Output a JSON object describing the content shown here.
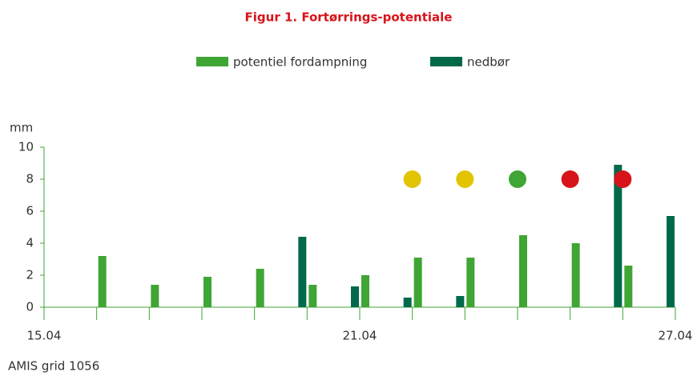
{
  "chart_data": {
    "type": "bar",
    "title": "Figur 1. Fortørrings-potentiale",
    "y_label": "mm",
    "footer": "AMIS grid 1056",
    "categories": [
      "15.04",
      null,
      null,
      null,
      null,
      null,
      "21.04",
      null,
      null,
      null,
      null,
      null,
      "27.04"
    ],
    "series": [
      {
        "name": "potentiel fordampning",
        "color": "#3fa535",
        "values": [
          null,
          3.2,
          1.4,
          1.9,
          2.4,
          1.4,
          2.0,
          3.1,
          3.1,
          4.5,
          4.0,
          2.6,
          null
        ]
      },
      {
        "name": "nedbør",
        "color": "#00694a",
        "values": [
          null,
          null,
          null,
          null,
          null,
          4.4,
          1.3,
          0.6,
          0.7,
          null,
          null,
          8.9,
          5.7
        ]
      }
    ],
    "markers": {
      "values": [
        null,
        null,
        null,
        null,
        null,
        null,
        null,
        8,
        8,
        8,
        8,
        8,
        null
      ],
      "colors": [
        null,
        null,
        null,
        null,
        null,
        null,
        null,
        "#e2c400",
        "#e2c400",
        "#3fa535",
        "#d7141a",
        "#d7141a",
        null
      ]
    },
    "ylim": [
      0,
      10
    ],
    "yticks": [
      0,
      2,
      4,
      6,
      8,
      10
    ]
  }
}
